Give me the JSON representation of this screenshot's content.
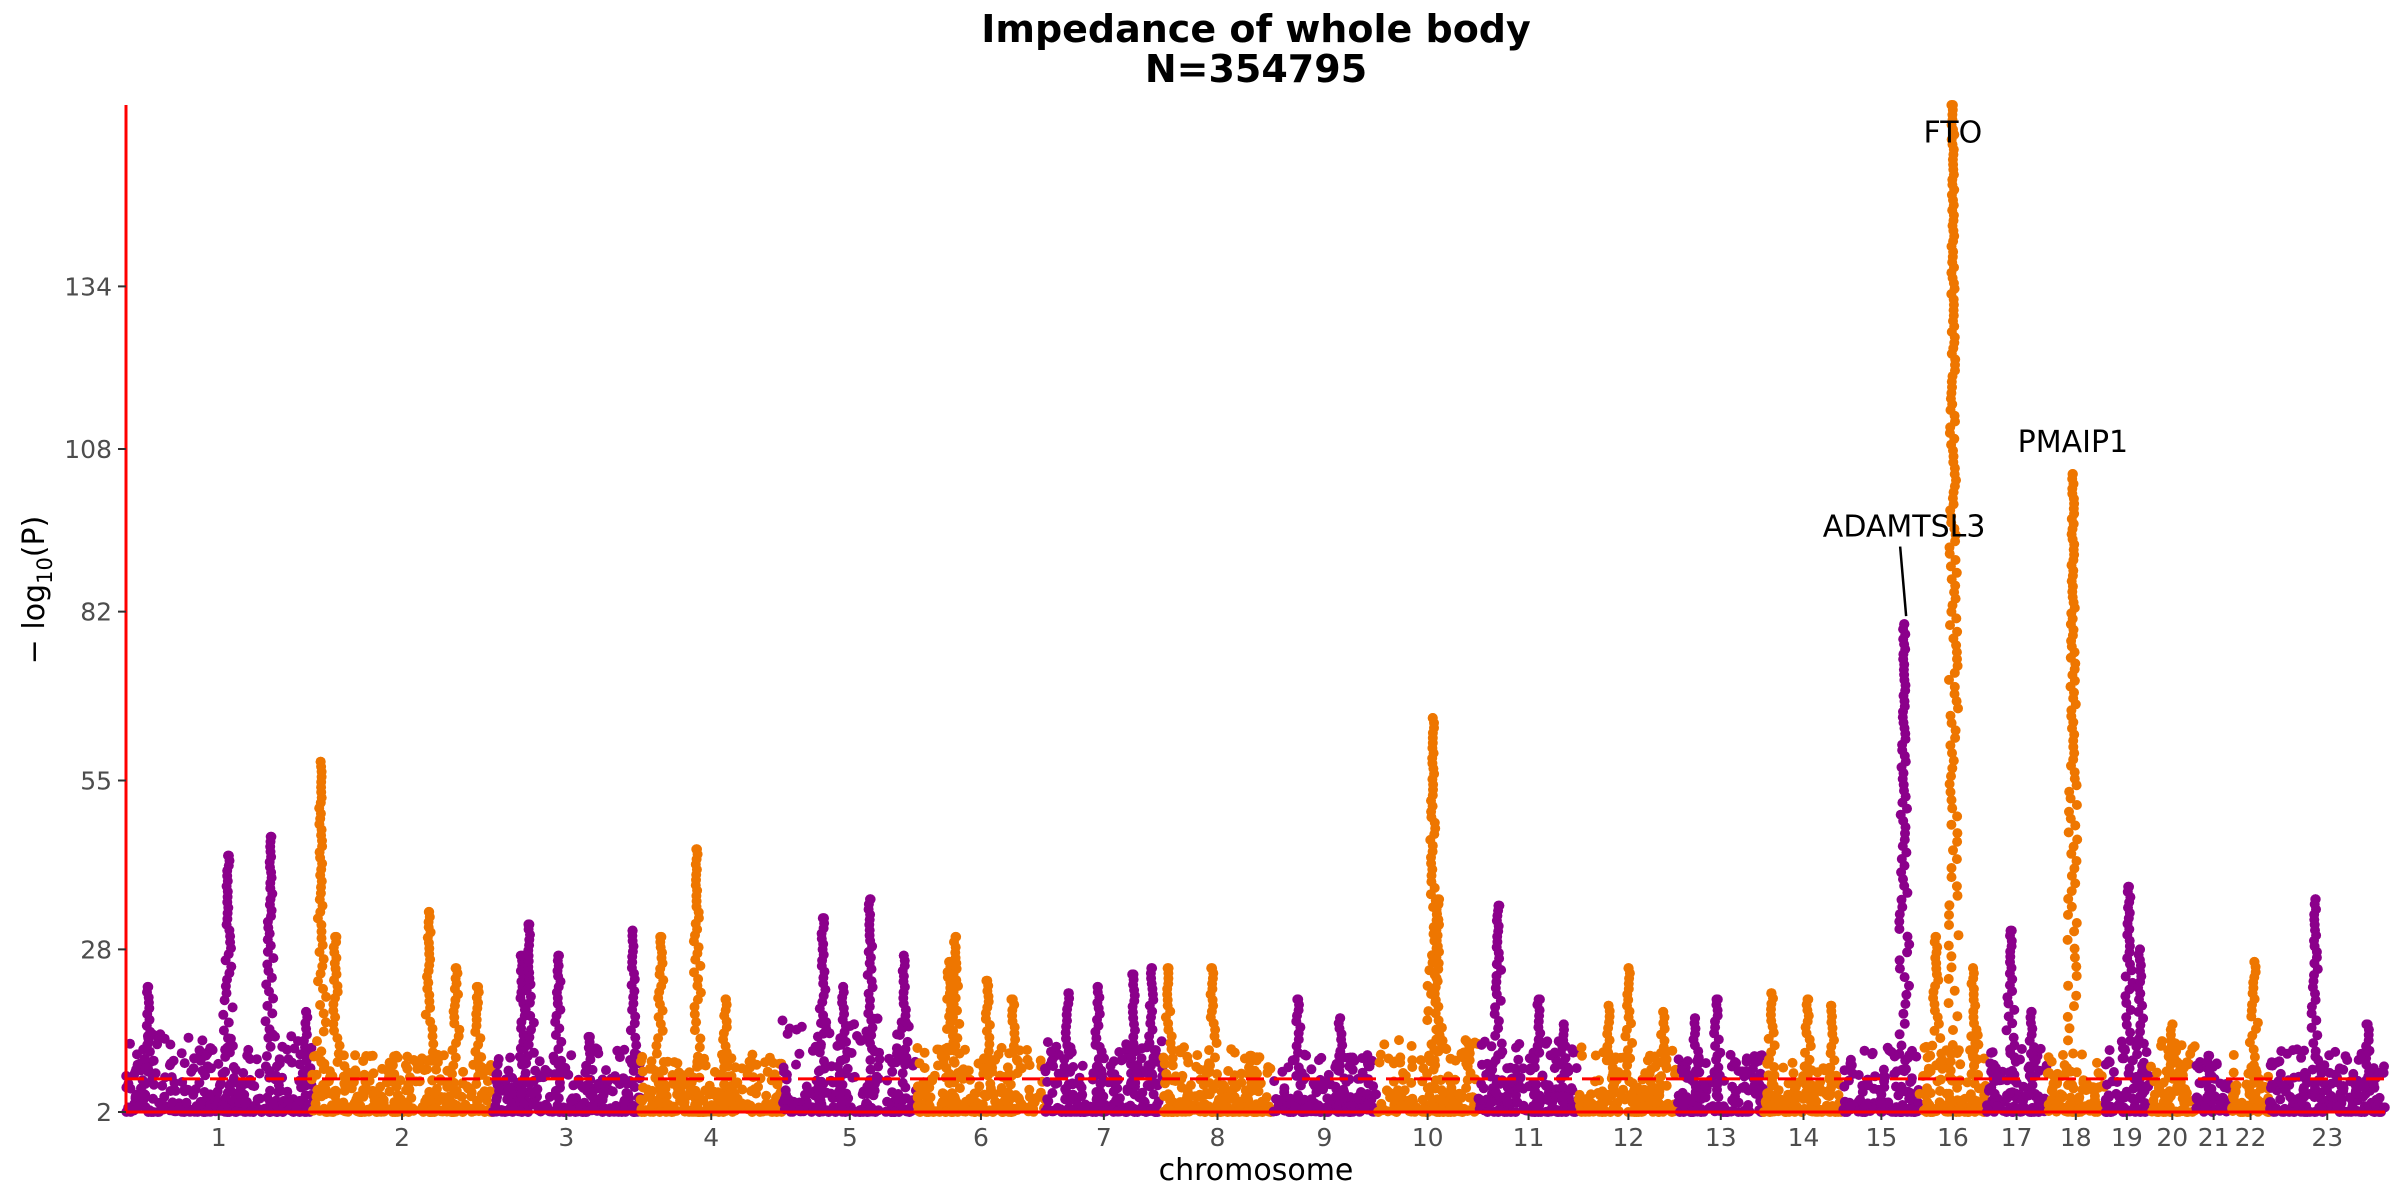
{
  "chart_data": {
    "type": "scatter",
    "title": "Impedance of whole body",
    "subtitle": "N=354795",
    "xlabel": "chromosome",
    "ylabel_prefix": "− log",
    "ylabel_sub": "10",
    "ylabel_suffix": "(P)",
    "ylim": [
      2,
      163
    ],
    "yticks": [
      2,
      28,
      55,
      82,
      108,
      134
    ],
    "threshold": 7.3,
    "colors": {
      "odd": "#8B008B",
      "even": "#EE7600",
      "axis": "#FF0000",
      "threshold": "#FF0000"
    },
    "chromosomes": [
      {
        "label": "1",
        "length": 249,
        "base": 13,
        "peaks": [
          [
            0.12,
            22
          ],
          [
            0.55,
            43
          ],
          [
            0.78,
            46
          ],
          [
            0.97,
            18
          ]
        ]
      },
      {
        "label": "2",
        "length": 243,
        "base": 10,
        "peaks": [
          [
            0.05,
            58
          ],
          [
            0.13,
            30
          ],
          [
            0.65,
            34
          ],
          [
            0.8,
            25
          ],
          [
            0.92,
            22
          ]
        ]
      },
      {
        "label": "3",
        "length": 198,
        "base": 11,
        "peaks": [
          [
            0.2,
            27
          ],
          [
            0.25,
            32
          ],
          [
            0.45,
            27
          ],
          [
            0.65,
            14
          ],
          [
            0.95,
            31
          ]
        ]
      },
      {
        "label": "4",
        "length": 191,
        "base": 10,
        "peaks": [
          [
            0.15,
            30
          ],
          [
            0.4,
            44
          ],
          [
            0.6,
            20
          ]
        ]
      },
      {
        "label": "5",
        "length": 181,
        "base": 15,
        "peaks": [
          [
            0.3,
            33
          ],
          [
            0.45,
            22
          ],
          [
            0.65,
            36
          ],
          [
            0.9,
            27
          ]
        ]
      },
      {
        "label": "6",
        "length": 171,
        "base": 11,
        "peaks": [
          [
            0.25,
            26
          ],
          [
            0.3,
            30
          ],
          [
            0.55,
            23
          ],
          [
            0.75,
            20
          ]
        ]
      },
      {
        "label": "7",
        "length": 159,
        "base": 12,
        "peaks": [
          [
            0.2,
            21
          ],
          [
            0.45,
            22
          ],
          [
            0.75,
            24
          ],
          [
            0.9,
            25
          ]
        ]
      },
      {
        "label": "8",
        "length": 146,
        "base": 11,
        "peaks": [
          [
            0.05,
            25
          ],
          [
            0.45,
            25
          ],
          [
            0.8,
            11
          ]
        ]
      },
      {
        "label": "9",
        "length": 141,
        "base": 10,
        "peaks": [
          [
            0.25,
            20
          ],
          [
            0.65,
            17
          ]
        ]
      },
      {
        "label": "10",
        "length": 136,
        "base": 12,
        "peaks": [
          [
            0.55,
            65
          ],
          [
            0.6,
            36
          ],
          [
            0.9,
            13
          ]
        ]
      },
      {
        "label": "11",
        "length": 135,
        "base": 12,
        "peaks": [
          [
            0.2,
            35
          ],
          [
            0.6,
            20
          ],
          [
            0.85,
            16
          ]
        ]
      },
      {
        "label": "12",
        "length": 133,
        "base": 11,
        "peaks": [
          [
            0.3,
            19
          ],
          [
            0.5,
            25
          ],
          [
            0.85,
            18
          ]
        ]
      },
      {
        "label": "13",
        "length": 115,
        "base": 10,
        "peaks": [
          [
            0.2,
            17
          ],
          [
            0.45,
            20
          ]
        ]
      },
      {
        "label": "14",
        "length": 107,
        "base": 9,
        "peaks": [
          [
            0.1,
            21
          ],
          [
            0.55,
            20
          ],
          [
            0.85,
            19
          ]
        ]
      },
      {
        "label": "15",
        "length": 102,
        "base": 11,
        "peaks": [
          [
            0.8,
            80
          ]
        ]
      },
      {
        "label": "16",
        "length": 90,
        "base": 13,
        "peaks": [
          [
            0.25,
            30
          ],
          [
            0.5,
            163
          ],
          [
            0.8,
            25
          ]
        ]
      },
      {
        "label": "17",
        "length": 81,
        "base": 11,
        "peaks": [
          [
            0.4,
            31
          ],
          [
            0.75,
            18
          ]
        ]
      },
      {
        "label": "18",
        "length": 78,
        "base": 10,
        "peaks": [
          [
            0.45,
            104
          ]
        ]
      },
      {
        "label": "19",
        "length": 59,
        "base": 12,
        "peaks": [
          [
            0.55,
            38
          ],
          [
            0.8,
            28
          ]
        ]
      },
      {
        "label": "20",
        "length": 63,
        "base": 12,
        "peaks": [
          [
            0.5,
            16
          ]
        ]
      },
      {
        "label": "21",
        "length": 48,
        "base": 9,
        "peaks": [
          [
            0.35,
            11
          ]
        ]
      },
      {
        "label": "22",
        "length": 51,
        "base": 10,
        "peaks": [
          [
            0.6,
            26
          ]
        ]
      },
      {
        "label": "23",
        "length": 155,
        "base": 11,
        "peaks": [
          [
            0.4,
            36
          ],
          [
            0.85,
            16
          ]
        ]
      }
    ],
    "annotations": [
      {
        "label": "FTO",
        "chrom": "16",
        "pos": 0.5,
        "y": 163,
        "label_y": 157,
        "leader": false
      },
      {
        "label": "PMAIP1",
        "chrom": "18",
        "pos": 0.45,
        "y": 104,
        "label_y": 107.5,
        "leader": false
      },
      {
        "label": "ADAMTSL3",
        "chrom": "15",
        "pos": 0.8,
        "y": 80,
        "label_y": 94,
        "leader": true
      }
    ]
  }
}
